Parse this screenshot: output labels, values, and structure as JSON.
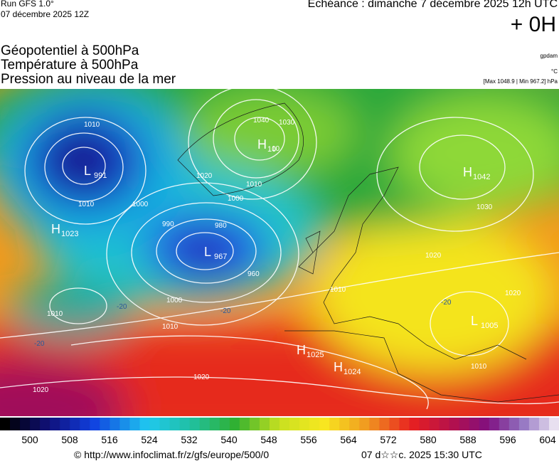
{
  "header": {
    "run": "Run GFS 1.0°",
    "date": "07 décembre 2025 12Z",
    "echeance": "Echéance : dimanche 7 décembre 2025 12h UTC",
    "step": "+ 0H",
    "titles": [
      "Géopotentiel à 500hPa",
      "Température à 500hPa",
      "Pression au niveau de la mer"
    ],
    "unit_geo": "gpdam",
    "unit_temp": "°C",
    "range": "[Max 1048.9 | Min 967.2] hPa"
  },
  "map": {
    "centers": [
      {
        "symbol": "L",
        "value": "991"
      },
      {
        "symbol": "H",
        "value": "1023"
      },
      {
        "symbol": "H",
        "value": "10"
      },
      {
        "symbol": "L",
        "value": "967"
      },
      {
        "symbol": "H",
        "value": "1042"
      },
      {
        "symbol": "H",
        "value": "1025"
      },
      {
        "symbol": "H",
        "value": "1024"
      },
      {
        "symbol": "L",
        "value": "1005"
      }
    ],
    "isobar_labels": [
      "1010",
      "1040",
      "1030",
      "1020",
      "1010",
      "1000",
      "990",
      "980",
      "1000",
      "960",
      "1000",
      "1010",
      "1010",
      "1020",
      "1020",
      "1010",
      "1010",
      "1030",
      "1010",
      "1020",
      "1020",
      "10"
    ],
    "temp_labels": [
      "-20",
      "-20",
      "-20",
      "-20"
    ]
  },
  "colorbar": {
    "labels": [
      "500",
      "508",
      "516",
      "524",
      "532",
      "540",
      "548",
      "556",
      "564",
      "572",
      "580",
      "588",
      "596",
      "604"
    ]
  },
  "footer": {
    "url": "© http://www.infoclimat.fr/z/gfs/europe/500/0",
    "timestamp": "07 d☆☆c. 2025 15:30 UTC"
  }
}
